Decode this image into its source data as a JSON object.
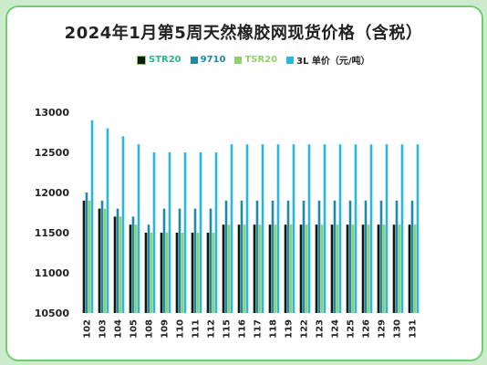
{
  "chart_data": {
    "type": "bar",
    "title": "2024年1月第5周天然橡胶网现货价格（含税）",
    "categories": [
      "102",
      "103",
      "104",
      "105",
      "108",
      "109",
      "110",
      "111",
      "112",
      "115",
      "116",
      "117",
      "118",
      "119",
      "122",
      "123",
      "124",
      "125",
      "126",
      "129",
      "130",
      "131"
    ],
    "series": [
      {
        "name": "STR20",
        "color": "#0d1a12",
        "values": [
          11900,
          11800,
          11700,
          11600,
          11500,
          11500,
          11500,
          11500,
          11500,
          11600,
          11600,
          11600,
          11600,
          11600,
          11600,
          11600,
          11600,
          11600,
          11600,
          11600,
          11600,
          11600
        ]
      },
      {
        "name": "9710",
        "color": "#1e8aa6",
        "values": [
          12000,
          11900,
          11800,
          11700,
          11600,
          11800,
          11800,
          11800,
          11800,
          11900,
          11900,
          11900,
          11900,
          11900,
          11900,
          11900,
          11900,
          11900,
          11900,
          11900,
          11900,
          11900
        ]
      },
      {
        "name": "TSR20",
        "color": "#8fd16a",
        "values": [
          11900,
          11800,
          11700,
          11600,
          11500,
          11500,
          11500,
          11500,
          11500,
          11600,
          11600,
          11600,
          11600,
          11600,
          11600,
          11600,
          11600,
          11600,
          11600,
          11600,
          11600,
          11600
        ]
      },
      {
        "name": "3L 单价（元/吨）",
        "color": "#2bb6de",
        "values": [
          12900,
          12800,
          12700,
          12600,
          12500,
          12500,
          12500,
          12500,
          12500,
          12600,
          12600,
          12600,
          12600,
          12600,
          12600,
          12600,
          12600,
          12600,
          12600,
          12600,
          12600,
          12600
        ]
      }
    ],
    "ylim": [
      10500,
      13000
    ],
    "yticks": [
      10500,
      11000,
      11500,
      12000,
      12500,
      13000
    ],
    "legend_position": "top-center",
    "grid": false
  }
}
